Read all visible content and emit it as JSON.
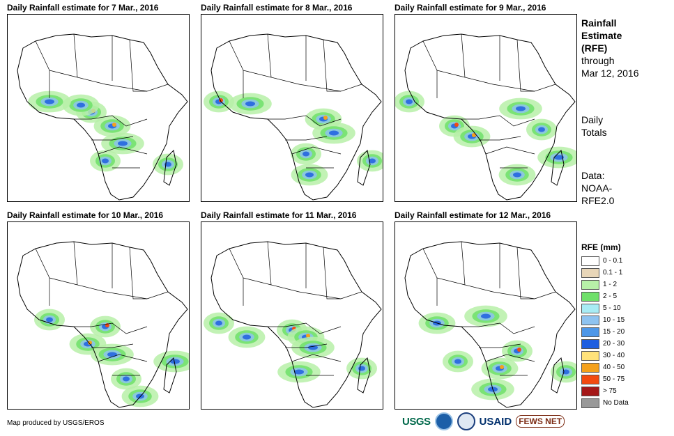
{
  "panels": [
    {
      "title": "Daily Rainfall estimate for 7 Mar., 2016"
    },
    {
      "title": "Daily Rainfall estimate for 8 Mar., 2016"
    },
    {
      "title": "Daily Rainfall estimate for 9 Mar., 2016"
    },
    {
      "title": "Daily Rainfall estimate for 10 Mar., 2016"
    },
    {
      "title": "Daily Rainfall estimate for 11 Mar., 2016"
    },
    {
      "title": "Daily Rainfall estimate for 12 Mar., 2016"
    }
  ],
  "sidebar": {
    "title_line1": "Rainfall",
    "title_line2": "Estimate",
    "title_line3": "(RFE)",
    "through_label": "through",
    "through_date": "Mar 12, 2016",
    "daily_line1": "Daily",
    "daily_line2": "Totals",
    "data_line1": "Data:",
    "data_line2": "NOAA-",
    "data_line3": "RFE2.0"
  },
  "legend": {
    "title": "RFE (mm)",
    "items": [
      {
        "label": "0 - 0.1",
        "color": "#ffffff"
      },
      {
        "label": "0.1 - 1",
        "color": "#e8d6b8"
      },
      {
        "label": "1 - 2",
        "color": "#b7f0a8"
      },
      {
        "label": "2 - 5",
        "color": "#6fe06a"
      },
      {
        "label": "5 - 10",
        "color": "#a8ecf4"
      },
      {
        "label": "10 - 15",
        "color": "#8ec3f0"
      },
      {
        "label": "15 - 20",
        "color": "#4d97e8"
      },
      {
        "label": "20 - 30",
        "color": "#1f5fe0"
      },
      {
        "label": "30 - 40",
        "color": "#ffe27a"
      },
      {
        "label": "40 - 50",
        "color": "#f4a11c"
      },
      {
        "label": "50 - 75",
        "color": "#f24a10"
      },
      {
        "label": "> 75",
        "color": "#a51818"
      },
      {
        "label": "No Data",
        "color": "#999999"
      }
    ]
  },
  "footer": {
    "credit": "Map produced by USGS/EROS",
    "logo_usgs": "USGS",
    "logo_usaid": "USAID",
    "logo_fews": "FEWS NET"
  }
}
